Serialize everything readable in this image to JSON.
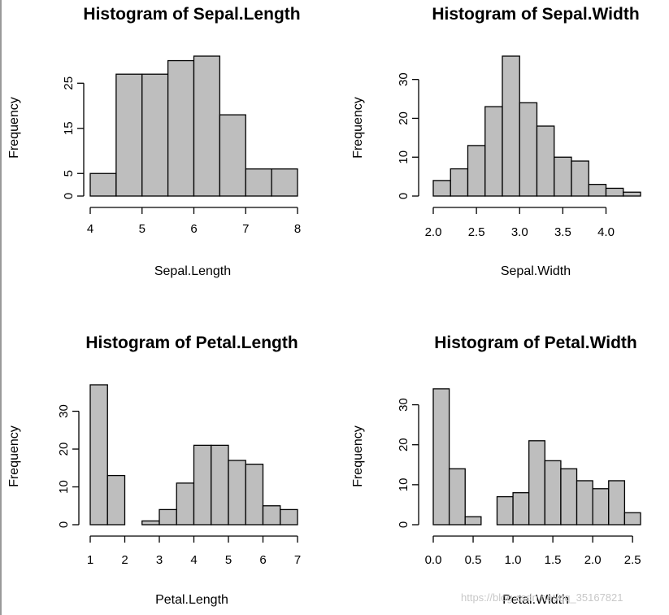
{
  "watermark": "https://blog.csdn.net/qq_35167821",
  "chart_data": [
    {
      "type": "histogram",
      "title": "Histogram of  Sepal.Length",
      "xlabel": "Sepal.Length",
      "ylabel": "Frequency",
      "bin_edges": [
        4.0,
        4.5,
        5.0,
        5.5,
        6.0,
        6.5,
        7.0,
        7.5,
        8.0
      ],
      "counts": [
        5,
        27,
        27,
        30,
        31,
        18,
        6,
        6
      ],
      "xlim": [
        4,
        8
      ],
      "ylim": [
        0,
        31
      ],
      "xticks": [
        4,
        5,
        6,
        7,
        8
      ],
      "xtick_labels": [
        "4",
        "5",
        "6",
        "7",
        "8"
      ],
      "yticks": [
        0,
        5,
        15,
        25
      ],
      "ytick_labels": [
        "0",
        "5",
        "15",
        "25"
      ],
      "fill": "#bebebe"
    },
    {
      "type": "histogram",
      "title": "Histogram of  Sepal.Width",
      "xlabel": "Sepal.Width",
      "ylabel": "Frequency",
      "bin_edges": [
        2.0,
        2.2,
        2.4,
        2.6,
        2.8,
        3.0,
        3.2,
        3.4,
        3.6,
        3.8,
        4.0,
        4.2,
        4.4
      ],
      "counts": [
        4,
        7,
        13,
        23,
        36,
        24,
        18,
        10,
        9,
        3,
        2,
        1
      ],
      "xlim": [
        2.0,
        4.4
      ],
      "ylim": [
        0,
        36
      ],
      "xticks": [
        2.0,
        2.5,
        3.0,
        3.5,
        4.0
      ],
      "xtick_labels": [
        "2.0",
        "2.5",
        "3.0",
        "3.5",
        "4.0"
      ],
      "yticks": [
        0,
        10,
        20,
        30
      ],
      "ytick_labels": [
        "0",
        "10",
        "20",
        "30"
      ],
      "fill": "#bebebe"
    },
    {
      "type": "histogram",
      "title": "Histogram of  Petal.Length",
      "xlabel": "Petal.Length",
      "ylabel": "Frequency",
      "bin_edges": [
        1.0,
        1.5,
        2.0,
        2.5,
        3.0,
        3.5,
        4.0,
        4.5,
        5.0,
        5.5,
        6.0,
        6.5,
        7.0
      ],
      "counts": [
        37,
        13,
        0,
        1,
        4,
        11,
        21,
        21,
        17,
        16,
        5,
        4
      ],
      "xlim": [
        1,
        7
      ],
      "ylim": [
        0,
        37
      ],
      "xticks": [
        1,
        2,
        3,
        4,
        5,
        6,
        7
      ],
      "xtick_labels": [
        "1",
        "2",
        "3",
        "4",
        "5",
        "6",
        "7"
      ],
      "yticks": [
        0,
        10,
        20,
        30
      ],
      "ytick_labels": [
        "0",
        "10",
        "20",
        "30"
      ],
      "fill": "#bebebe"
    },
    {
      "type": "histogram",
      "title": "Histogram of  Petal.Width",
      "xlabel": "Petal.Width",
      "ylabel": "Frequency",
      "bin_edges": [
        0.0,
        0.2,
        0.4,
        0.6,
        0.8,
        1.0,
        1.2,
        1.4,
        1.6,
        1.8,
        2.0,
        2.2,
        2.4,
        2.6
      ],
      "counts": [
        34,
        14,
        2,
        0,
        7,
        8,
        21,
        16,
        14,
        11,
        9,
        11,
        3
      ],
      "xlim": [
        0.0,
        2.6
      ],
      "ylim": [
        0,
        35
      ],
      "xticks": [
        0.0,
        0.5,
        1.0,
        1.5,
        2.0,
        2.5
      ],
      "xtick_labels": [
        "0.0",
        "0.5",
        "1.0",
        "1.5",
        "2.0",
        "2.5"
      ],
      "yticks": [
        0,
        10,
        20,
        30
      ],
      "ytick_labels": [
        "0",
        "10",
        "20",
        "30"
      ],
      "fill": "#bebebe"
    }
  ]
}
